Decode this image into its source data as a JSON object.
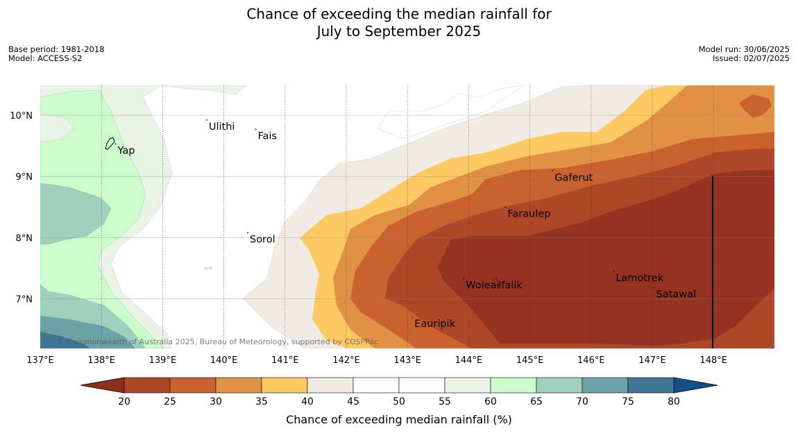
{
  "title": {
    "line1": "Chance of exceeding the median rainfall for",
    "line2": "July to September 2025"
  },
  "meta": {
    "base_period": "Base period: 1981-2018",
    "model": "Model: ACCESS-S2",
    "model_run": "Model run: 30/06/2025",
    "issued": "Issued: 02/07/2025"
  },
  "map": {
    "lon_range": [
      137,
      149
    ],
    "lat_range": [
      6.2,
      10.5
    ],
    "lon_ticks": [
      {
        "value": 137,
        "label": "137°E"
      },
      {
        "value": 138,
        "label": "138°E"
      },
      {
        "value": 139,
        "label": "139°E"
      },
      {
        "value": 140,
        "label": "140°E"
      },
      {
        "value": 141,
        "label": "141°E"
      },
      {
        "value": 142,
        "label": "142°E"
      },
      {
        "value": 143,
        "label": "143°E"
      },
      {
        "value": 144,
        "label": "144°E"
      },
      {
        "value": 145,
        "label": "145°E"
      },
      {
        "value": 146,
        "label": "146°E"
      },
      {
        "value": 147,
        "label": "147°E"
      },
      {
        "value": 148,
        "label": "148°E"
      }
    ],
    "lat_ticks": [
      {
        "value": 10,
        "label": "10°N"
      },
      {
        "value": 9,
        "label": "9°N"
      },
      {
        "value": 8,
        "label": "8°N"
      },
      {
        "value": 7,
        "label": "7°N"
      }
    ],
    "places": [
      {
        "name": "Yap",
        "lon": 138.23,
        "lat": 9.53
      },
      {
        "name": "Ulithi",
        "lon": 139.72,
        "lat": 9.92
      },
      {
        "name": "Fais",
        "lon": 140.52,
        "lat": 9.77
      },
      {
        "name": "Gaferut",
        "lon": 145.37,
        "lat": 9.09
      },
      {
        "name": "Faraulep",
        "lon": 144.6,
        "lat": 8.5
      },
      {
        "name": "Sorol",
        "lon": 140.39,
        "lat": 8.08
      },
      {
        "name": "Woleai",
        "lon": 143.92,
        "lat": 7.33
      },
      {
        "name": "Ifalik",
        "lon": 144.45,
        "lat": 7.33
      },
      {
        "name": "Lamotrek",
        "lon": 146.37,
        "lat": 7.45
      },
      {
        "name": "Satawal",
        "lon": 147.03,
        "lat": 7.18
      },
      {
        "name": "Eauripik",
        "lon": 143.08,
        "lat": 6.7
      }
    ],
    "attribution": "© Commonwealth of Australia 2025, Bureau of Meteorology, supported by COSPPac"
  },
  "colorbar": {
    "label": "Chance of exceeding median rainfall (%)",
    "ticks": [
      "20",
      "25",
      "30",
      "35",
      "40",
      "45",
      "50",
      "55",
      "60",
      "65",
      "70",
      "75",
      "80"
    ],
    "colors": [
      "#ae4728",
      "#c9622f",
      "#e09143",
      "#fcc962",
      "#f0ece4",
      "#ffffff",
      "#ffffff",
      "#eaf3e6",
      "#ccfccb",
      "#9fd0bb",
      "#6aa3a5",
      "#3f7796"
    ],
    "extend_low": "#8b3019",
    "extend_high": "#134e87"
  }
}
